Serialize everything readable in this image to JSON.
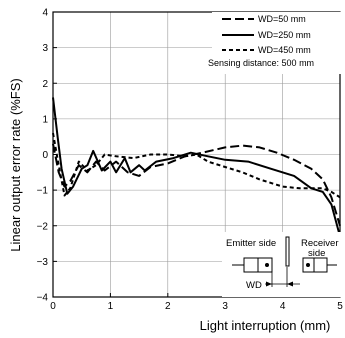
{
  "chart_data": {
    "type": "line",
    "xlabel": "Light interruption (mm)",
    "ylabel": "Linear output error rate (%FS)",
    "xlim": [
      0,
      5
    ],
    "ylim": [
      -4,
      4
    ],
    "xticks": [
      0,
      1,
      2,
      3,
      4,
      5
    ],
    "yticks": [
      -4,
      -3,
      -2,
      -1,
      0,
      1,
      2,
      3,
      4
    ],
    "grid": true,
    "legend_position": "top-right",
    "annotation": "Sensing distance: 500 mm",
    "series": [
      {
        "name": "WD=50 mm",
        "style": "long-dash",
        "points": [
          [
            0,
            0.3
          ],
          [
            0.1,
            -0.5
          ],
          [
            0.2,
            -0.9
          ],
          [
            0.3,
            -0.75
          ],
          [
            0.45,
            -0.3
          ],
          [
            0.6,
            -0.5
          ],
          [
            0.75,
            -0.2
          ],
          [
            0.9,
            -0.45
          ],
          [
            1.1,
            -0.2
          ],
          [
            1.3,
            -0.5
          ],
          [
            1.5,
            -0.6
          ],
          [
            1.7,
            -0.35
          ],
          [
            2.0,
            -0.25
          ],
          [
            2.3,
            -0.05
          ],
          [
            2.6,
            0.05
          ],
          [
            3.0,
            0.2
          ],
          [
            3.3,
            0.25
          ],
          [
            3.6,
            0.2
          ],
          [
            3.9,
            0.05
          ],
          [
            4.2,
            -0.15
          ],
          [
            4.5,
            -0.4
          ],
          [
            4.7,
            -0.7
          ],
          [
            4.85,
            -1.2
          ],
          [
            5.0,
            -2.0
          ]
        ]
      },
      {
        "name": "WD=250 mm",
        "style": "solid",
        "points": [
          [
            0,
            1.6
          ],
          [
            0.08,
            0.5
          ],
          [
            0.15,
            -0.4
          ],
          [
            0.25,
            -1.1
          ],
          [
            0.35,
            -0.9
          ],
          [
            0.5,
            -0.4
          ],
          [
            0.6,
            -0.3
          ],
          [
            0.7,
            0.1
          ],
          [
            0.85,
            -0.45
          ],
          [
            1.0,
            -0.2
          ],
          [
            1.1,
            -0.5
          ],
          [
            1.25,
            -0.1
          ],
          [
            1.35,
            -0.5
          ],
          [
            1.5,
            -0.3
          ],
          [
            1.6,
            -0.45
          ],
          [
            1.8,
            -0.2
          ],
          [
            2.1,
            -0.1
          ],
          [
            2.4,
            0.05
          ],
          [
            2.7,
            -0.05
          ],
          [
            3.0,
            -0.15
          ],
          [
            3.4,
            -0.2
          ],
          [
            3.8,
            -0.4
          ],
          [
            4.2,
            -0.6
          ],
          [
            4.5,
            -0.95
          ],
          [
            4.7,
            -1.05
          ],
          [
            4.85,
            -1.4
          ],
          [
            5.0,
            -2.3
          ]
        ]
      },
      {
        "name": "WD=450 mm",
        "style": "short-dash",
        "points": [
          [
            0,
            0.6
          ],
          [
            0.1,
            -0.3
          ],
          [
            0.2,
            -1.15
          ],
          [
            0.3,
            -0.95
          ],
          [
            0.45,
            -0.2
          ],
          [
            0.6,
            -0.45
          ],
          [
            0.75,
            -0.3
          ],
          [
            0.9,
            0.0
          ],
          [
            1.1,
            -0.05
          ],
          [
            1.4,
            -0.1
          ],
          [
            1.7,
            0.0
          ],
          [
            2.0,
            0.0
          ],
          [
            2.3,
            -0.05
          ],
          [
            2.5,
            0.0
          ],
          [
            2.7,
            -0.2
          ],
          [
            3.0,
            -0.35
          ],
          [
            3.3,
            -0.5
          ],
          [
            3.6,
            -0.7
          ],
          [
            4.0,
            -0.9
          ],
          [
            4.3,
            -0.95
          ],
          [
            4.7,
            -0.95
          ],
          [
            4.85,
            -1.05
          ],
          [
            5.0,
            -1.2
          ]
        ]
      }
    ]
  },
  "diagram": {
    "emitter_label": "Emitter side",
    "receiver_label_line1": "Receiver",
    "receiver_label_line2": "side",
    "wd_label": "WD"
  }
}
